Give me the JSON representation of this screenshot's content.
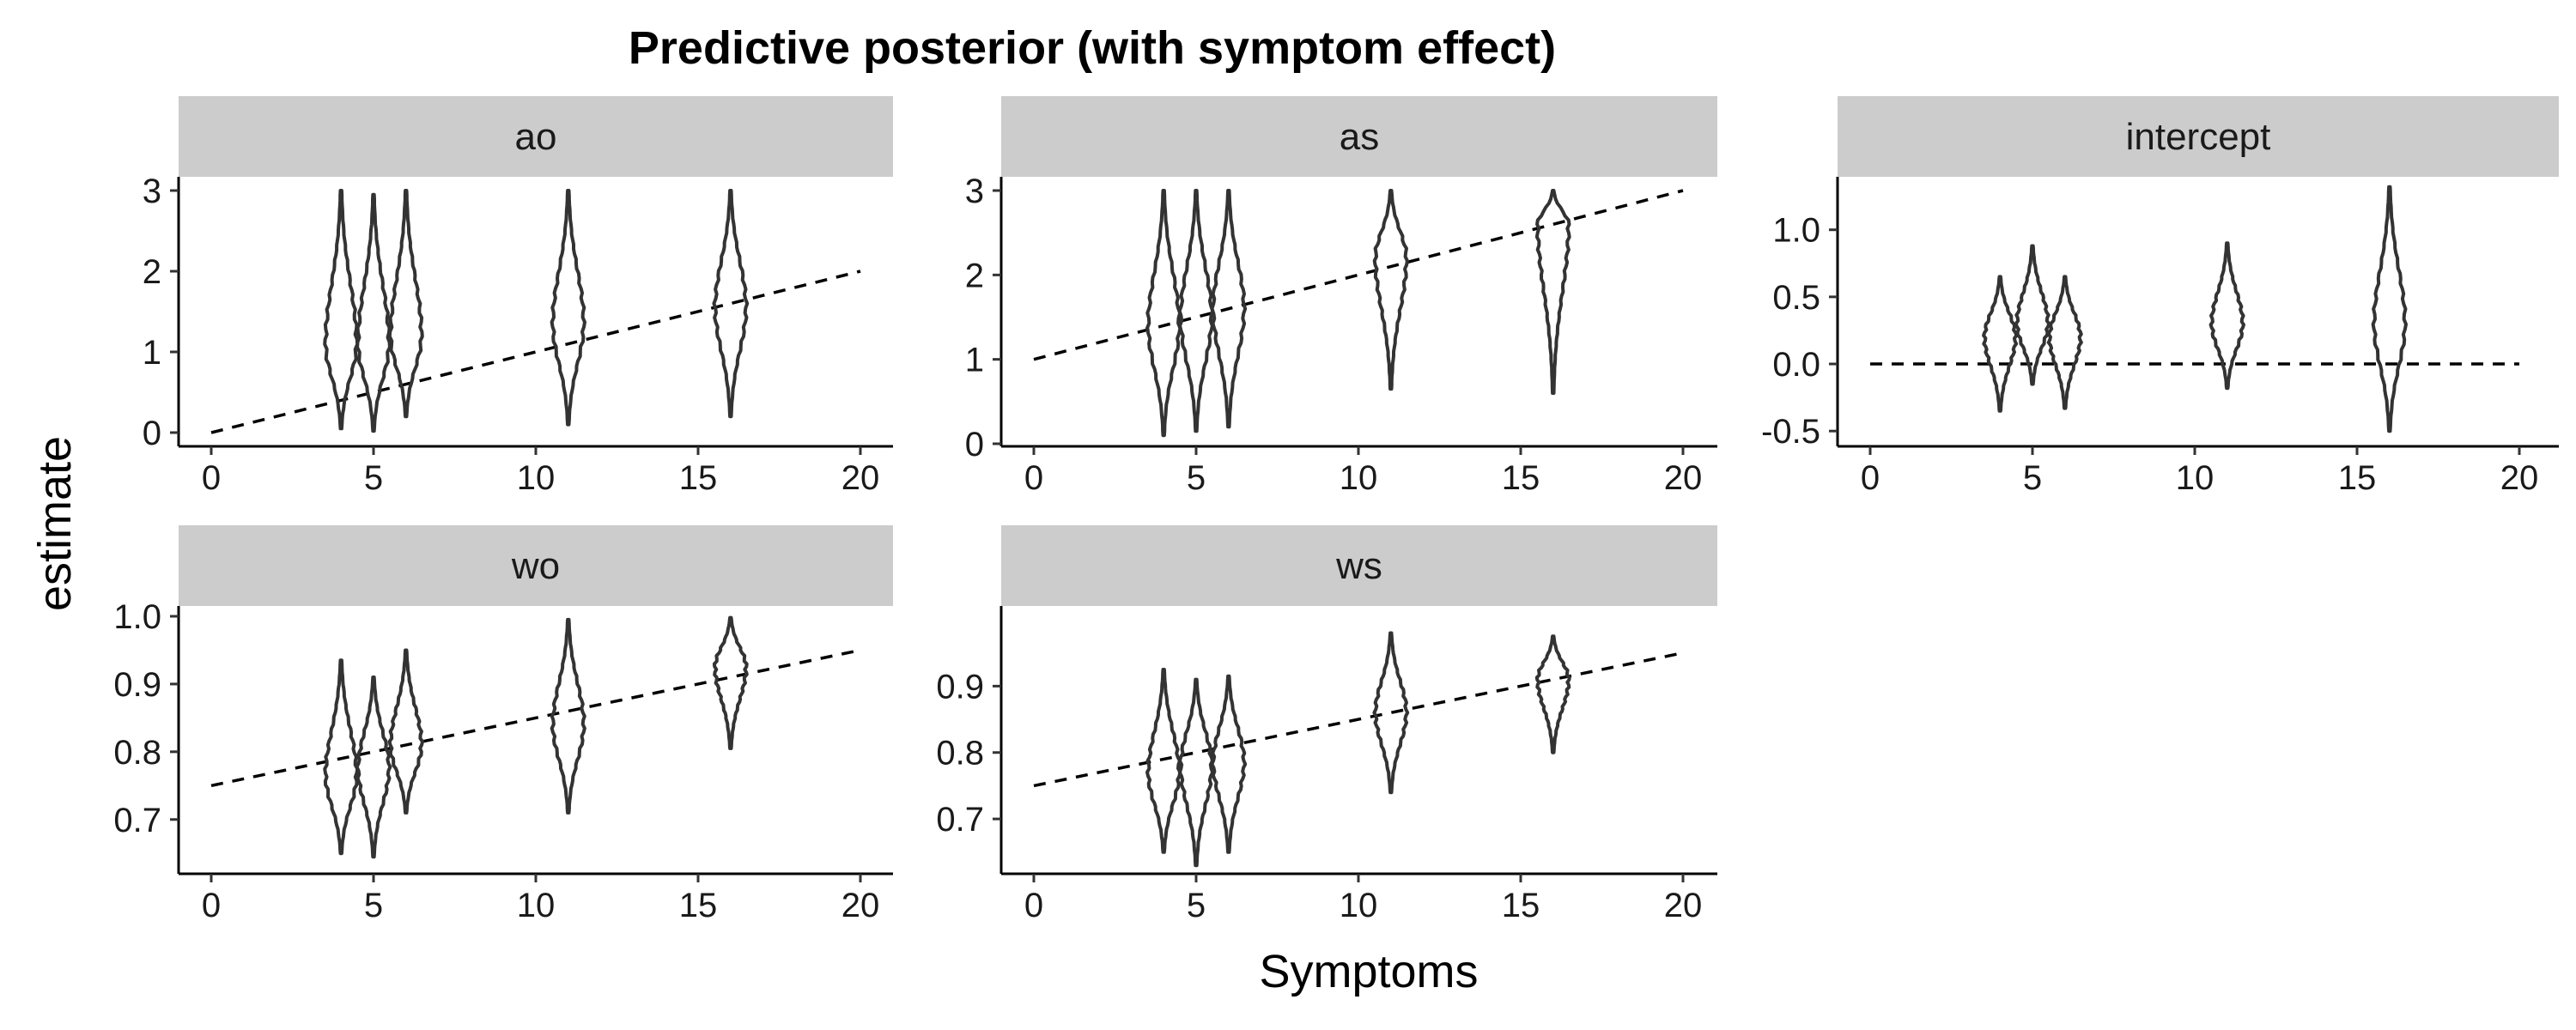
{
  "title": "Predictive posterior (with symptom effect)",
  "xlabel": "Symptoms",
  "ylabel": "estimate",
  "chart_data": {
    "type": "violin",
    "title": "Predictive posterior (with symptom effect)",
    "xlabel": "Symptoms",
    "ylabel": "estimate",
    "grid": false,
    "x_positions": [
      4,
      5,
      6,
      11,
      16
    ],
    "xlim": [
      0,
      20
    ],
    "x_ticks": [
      0,
      5,
      10,
      15,
      20
    ],
    "facets": [
      {
        "label": "ao",
        "ylim": [
          0,
          3
        ],
        "y_ticks": [
          0,
          1,
          2,
          3
        ],
        "y_tick_labels": [
          "0",
          "1",
          "2",
          "3"
        ],
        "reference_line": {
          "style": "dashed",
          "x": [
            0,
            20
          ],
          "y": [
            0,
            2
          ]
        },
        "violins": [
          {
            "x": 4,
            "min": 0.05,
            "max": 3.0,
            "median": 1.1
          },
          {
            "x": 5,
            "min": 0.02,
            "max": 2.95,
            "median": 1.1
          },
          {
            "x": 6,
            "min": 0.2,
            "max": 3.0,
            "median": 1.2
          },
          {
            "x": 11,
            "min": 0.1,
            "max": 3.0,
            "median": 1.35
          },
          {
            "x": 16,
            "min": 0.2,
            "max": 3.0,
            "median": 1.55
          }
        ]
      },
      {
        "label": "as",
        "ylim": [
          0,
          3
        ],
        "y_ticks": [
          0,
          1,
          2,
          3
        ],
        "y_tick_labels": [
          "0",
          "1",
          "2",
          "3"
        ],
        "reference_line": {
          "style": "dashed",
          "x": [
            0,
            20
          ],
          "y": [
            1,
            3
          ]
        },
        "violins": [
          {
            "x": 4,
            "min": 0.1,
            "max": 3.0,
            "median": 1.4
          },
          {
            "x": 5,
            "min": 0.15,
            "max": 3.0,
            "median": 1.5
          },
          {
            "x": 6,
            "min": 0.2,
            "max": 3.0,
            "median": 1.6
          },
          {
            "x": 11,
            "min": 0.65,
            "max": 3.0,
            "median": 2.2
          },
          {
            "x": 16,
            "min": 0.6,
            "max": 3.0,
            "median": 2.6
          }
        ]
      },
      {
        "label": "intercept",
        "ylim": [
          -0.55,
          1.35
        ],
        "y_ticks": [
          -0.5,
          0.0,
          0.5,
          1.0
        ],
        "y_tick_labels": [
          "-0.5",
          "0.0",
          "0.5",
          "1.0"
        ],
        "reference_line": {
          "style": "dashed",
          "x": [
            0,
            20
          ],
          "y": [
            0,
            0
          ]
        },
        "violins": [
          {
            "x": 4,
            "min": -0.35,
            "max": 0.65,
            "median": 0.2
          },
          {
            "x": 5,
            "min": -0.15,
            "max": 0.88,
            "median": 0.3
          },
          {
            "x": 6,
            "min": -0.33,
            "max": 0.65,
            "median": 0.2
          },
          {
            "x": 11,
            "min": -0.18,
            "max": 0.9,
            "median": 0.3
          },
          {
            "x": 16,
            "min": -0.5,
            "max": 1.32,
            "median": 0.3
          }
        ]
      },
      {
        "label": "wo",
        "ylim": [
          0.63,
          1.0
        ],
        "y_ticks": [
          0.7,
          0.8,
          0.9,
          1.0
        ],
        "y_tick_labels": [
          "0.7",
          "0.8",
          "0.9",
          "1.0"
        ],
        "reference_line": {
          "style": "dashed",
          "x": [
            0,
            20
          ],
          "y": [
            0.75,
            0.95
          ]
        },
        "violins": [
          {
            "x": 4,
            "min": 0.65,
            "max": 0.935,
            "median": 0.765
          },
          {
            "x": 5,
            "min": 0.645,
            "max": 0.91,
            "median": 0.775
          },
          {
            "x": 6,
            "min": 0.71,
            "max": 0.95,
            "median": 0.81
          },
          {
            "x": 11,
            "min": 0.71,
            "max": 0.995,
            "median": 0.84
          },
          {
            "x": 16,
            "min": 0.805,
            "max": 0.998,
            "median": 0.925
          }
        ]
      },
      {
        "label": "ws",
        "ylim": [
          0.62,
          1.0
        ],
        "y_ticks": [
          0.7,
          0.8,
          0.9
        ],
        "y_tick_labels": [
          "0.7",
          "0.8",
          "0.9"
        ],
        "reference_line": {
          "style": "dashed",
          "x": [
            0,
            20
          ],
          "y": [
            0.75,
            0.95
          ]
        },
        "violins": [
          {
            "x": 4,
            "min": 0.65,
            "max": 0.925,
            "median": 0.77
          },
          {
            "x": 5,
            "min": 0.63,
            "max": 0.91,
            "median": 0.78
          },
          {
            "x": 6,
            "min": 0.65,
            "max": 0.915,
            "median": 0.785
          },
          {
            "x": 11,
            "min": 0.74,
            "max": 0.98,
            "median": 0.86
          },
          {
            "x": 16,
            "min": 0.8,
            "max": 0.975,
            "median": 0.91
          }
        ]
      }
    ]
  }
}
